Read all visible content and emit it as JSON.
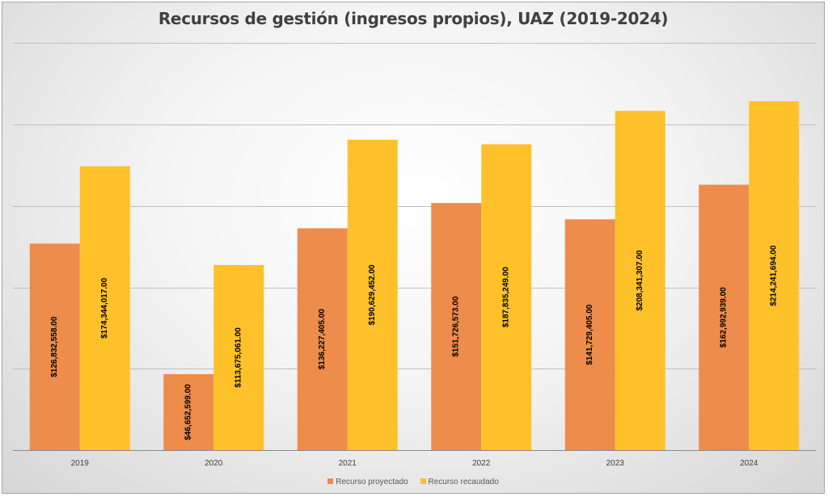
{
  "chart_data": {
    "type": "bar",
    "title": "Recursos de gestión (ingresos propios), UAZ (2019-2024)",
    "categories": [
      "2019",
      "2020",
      "2021",
      "2022",
      "2023",
      "2024"
    ],
    "series": [
      {
        "name": "Recurso proyectado",
        "color": "#ED8C4B",
        "values": [
          126832558.0,
          46652599.0,
          136227405.0,
          151726573.0,
          141729405.0,
          162992939.0
        ],
        "labels": [
          "$126,832,558.00",
          "$46,652,599.00",
          "$136,227,405.00",
          "$151,726,573.00",
          "$141,729,405.00",
          "$162,992,939.00"
        ]
      },
      {
        "name": "Recurso recaudado",
        "color": "#FFC12A",
        "values": [
          174344017.0,
          113675061.0,
          190629452.0,
          187835249.0,
          208341307.0,
          214241694.0
        ],
        "labels": [
          "$174,344,017.00",
          "$113,675,061.00",
          "$190,629,452.00",
          "$187,835,249.00",
          "$208,341,307.00",
          "$214,241,694.00"
        ]
      }
    ],
    "ylim": [
      0,
      250000000
    ],
    "grid": true,
    "y_tick_labels_shown": false,
    "legend_position": "bottom"
  }
}
